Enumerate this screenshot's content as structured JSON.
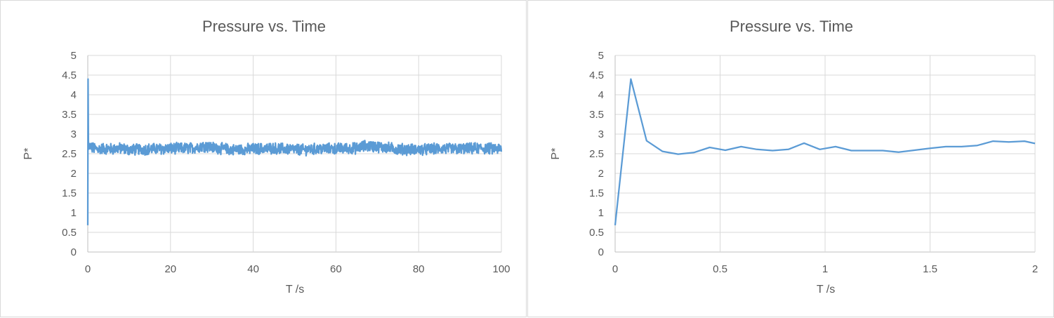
{
  "colors": {
    "series": "#5b9bd5",
    "grid": "#d9d9d9",
    "text": "#595959"
  },
  "chart_data": [
    {
      "type": "line",
      "title": "Pressure vs. Time",
      "xlabel": "T /s",
      "ylabel": "P*",
      "xlim": [
        0,
        100
      ],
      "ylim": [
        0,
        5
      ],
      "xticks": [
        0,
        20,
        40,
        60,
        80,
        100
      ],
      "yticks": [
        0,
        0.5,
        1,
        1.5,
        2,
        2.5,
        3,
        3.5,
        4,
        4.5,
        5
      ],
      "xtick_labels": [
        "0",
        "20",
        "40",
        "60",
        "80",
        "100"
      ],
      "ytick_labels": [
        "0",
        "0.5",
        "1",
        "1.5",
        "2",
        "2.5",
        "3",
        "3.5",
        "4",
        "4.5",
        "5"
      ],
      "grid": true,
      "series": [
        {
          "noisy": true,
          "x": [
            0,
            0.075,
            0.15,
            0.25,
            0.5,
            1,
            2,
            4,
            6,
            8,
            10,
            15,
            20,
            25,
            28,
            30,
            35,
            40,
            45,
            50,
            52,
            55,
            60,
            65,
            67,
            70,
            75,
            80,
            85,
            90,
            95,
            100
          ],
          "y": [
            0.68,
            4.4,
            2.83,
            2.6,
            2.7,
            2.65,
            2.62,
            2.63,
            2.62,
            2.64,
            2.6,
            2.62,
            2.63,
            2.64,
            2.7,
            2.66,
            2.6,
            2.62,
            2.64,
            2.61,
            2.6,
            2.62,
            2.63,
            2.64,
            2.7,
            2.68,
            2.62,
            2.6,
            2.63,
            2.62,
            2.64,
            2.62
          ],
          "amplitude": 0.13
        }
      ]
    },
    {
      "type": "line",
      "title": "Pressure vs. Time",
      "xlabel": "T /s",
      "ylabel": "P*",
      "xlim": [
        0,
        2
      ],
      "ylim": [
        0,
        5
      ],
      "xticks": [
        0,
        0.5,
        1,
        1.5,
        2
      ],
      "yticks": [
        0,
        0.5,
        1,
        1.5,
        2,
        2.5,
        3,
        3.5,
        4,
        4.5,
        5
      ],
      "xtick_labels": [
        "0",
        "0.5",
        "1",
        "1.5",
        "2"
      ],
      "ytick_labels": [
        "0",
        "0.5",
        "1",
        "1.5",
        "2",
        "2.5",
        "3",
        "3.5",
        "4",
        "4.5",
        "5"
      ],
      "grid": true,
      "series": [
        {
          "noisy": false,
          "x": [
            0,
            0.075,
            0.15,
            0.225,
            0.3,
            0.375,
            0.45,
            0.525,
            0.6,
            0.675,
            0.75,
            0.825,
            0.9,
            0.975,
            1.05,
            1.125,
            1.2,
            1.275,
            1.35,
            1.425,
            1.5,
            1.575,
            1.65,
            1.725,
            1.8,
            1.875,
            1.95,
            2.0
          ],
          "y": [
            0.68,
            4.4,
            2.83,
            2.56,
            2.49,
            2.53,
            2.66,
            2.59,
            2.68,
            2.61,
            2.58,
            2.61,
            2.77,
            2.61,
            2.68,
            2.58,
            2.58,
            2.58,
            2.54,
            2.59,
            2.64,
            2.68,
            2.68,
            2.71,
            2.82,
            2.8,
            2.82,
            2.76
          ]
        }
      ]
    }
  ]
}
